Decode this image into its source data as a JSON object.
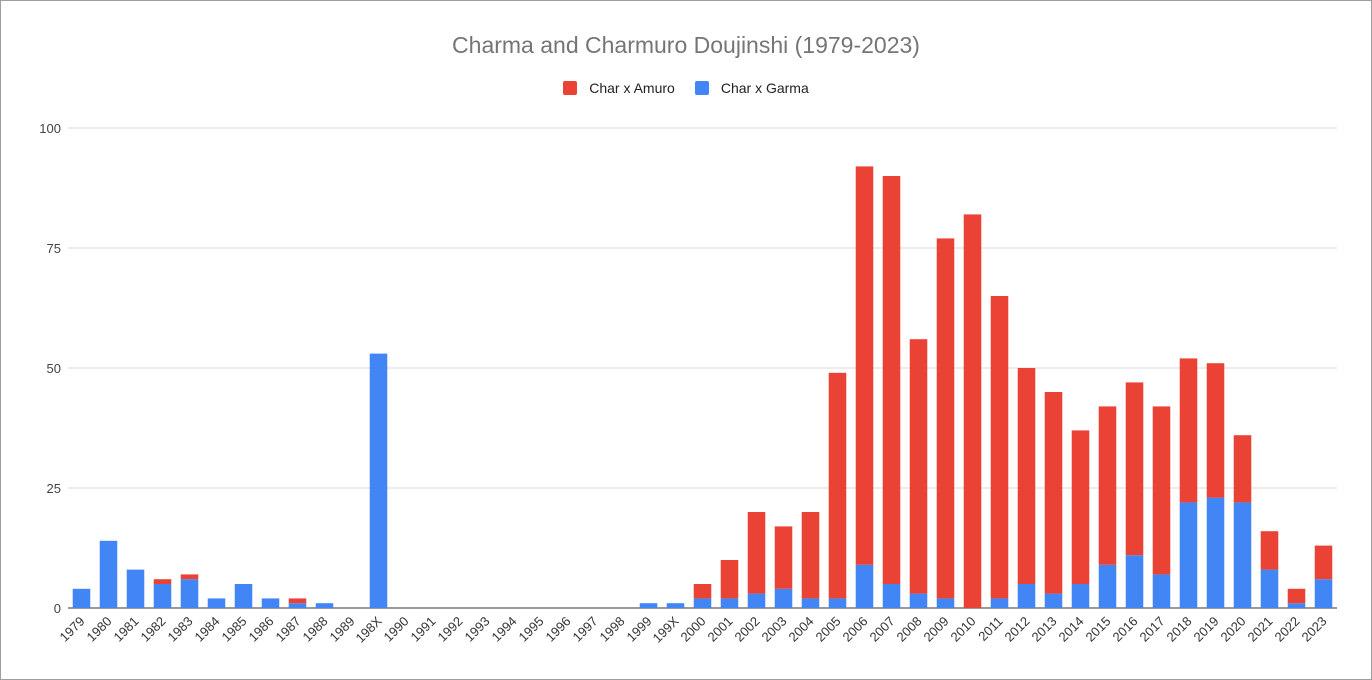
{
  "chart_data": {
    "type": "bar",
    "stacked": true,
    "title": "Charma and Charmuro Doujinshi (1979-2023)",
    "xlabel": "",
    "ylabel": "",
    "ylim": [
      0,
      100
    ],
    "yticks": [
      0,
      25,
      50,
      75,
      100
    ],
    "grid": true,
    "legend_position": "top",
    "categories": [
      "1979",
      "1980",
      "1981",
      "1982",
      "1983",
      "1984",
      "1985",
      "1986",
      "1987",
      "1988",
      "1989",
      "198X",
      "1990",
      "1991",
      "1992",
      "1993",
      "1994",
      "1995",
      "1996",
      "1997",
      "1998",
      "1999",
      "199X",
      "2000",
      "2001",
      "2002",
      "2003",
      "2004",
      "2005",
      "2006",
      "2007",
      "2008",
      "2009",
      "2010",
      "2011",
      "2012",
      "2013",
      "2014",
      "2015",
      "2016",
      "2017",
      "2018",
      "2019",
      "2020",
      "2021",
      "2022",
      "2023"
    ],
    "series": [
      {
        "name": "Char x Garma",
        "color": "#4285f4",
        "values": [
          4,
          14,
          8,
          5,
          6,
          2,
          5,
          2,
          1,
          1,
          0,
          53,
          0,
          0,
          0,
          0,
          0,
          0,
          0,
          0,
          0,
          1,
          1,
          2,
          2,
          3,
          4,
          2,
          2,
          9,
          5,
          3,
          2,
          0,
          2,
          5,
          3,
          5,
          9,
          11,
          7,
          22,
          23,
          22,
          8,
          1,
          6
        ]
      },
      {
        "name": "Char x Amuro",
        "color": "#ea4335",
        "values": [
          0,
          0,
          0,
          1,
          1,
          0,
          0,
          0,
          1,
          0,
          0,
          0,
          0,
          0,
          0,
          0,
          0,
          0,
          0,
          0,
          0,
          0,
          0,
          3,
          8,
          17,
          13,
          18,
          47,
          83,
          85,
          53,
          75,
          82,
          63,
          45,
          42,
          32,
          33,
          36,
          35,
          30,
          28,
          14,
          8,
          3,
          7
        ]
      }
    ],
    "legend_order": [
      1,
      0
    ]
  }
}
